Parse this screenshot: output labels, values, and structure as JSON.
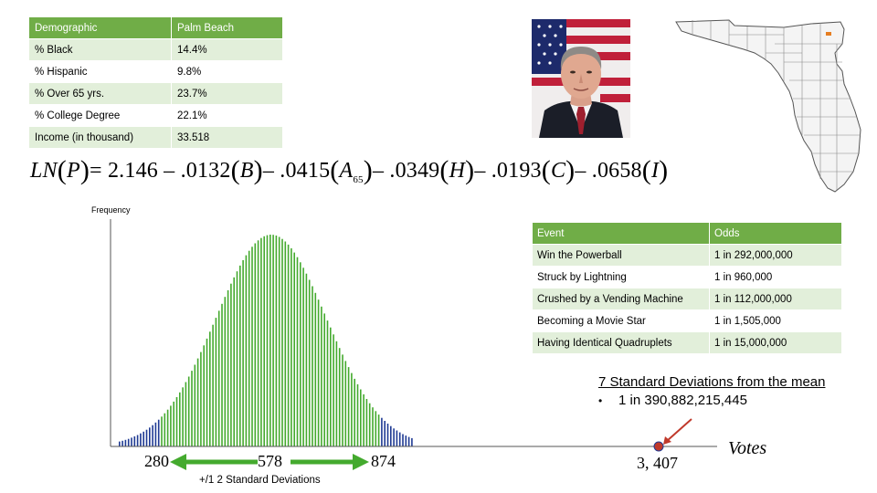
{
  "demographics": {
    "headers": [
      "Demographic",
      "Palm Beach"
    ],
    "rows": [
      [
        "% Black",
        "14.4%"
      ],
      [
        "% Hispanic",
        "9.8%"
      ],
      [
        "% Over 65 yrs.",
        "23.7%"
      ],
      [
        "% College Degree",
        "22.1%"
      ],
      [
        "Income (in thousand)",
        "33.518"
      ]
    ]
  },
  "equation": {
    "lhs": "LN",
    "lhs_var": "P",
    "const": "= 2.146 – .0132",
    "t1": "B",
    "c2": "– .0415",
    "t2": "A",
    "t2_sub": "65",
    "c3": "– .0349",
    "t3": "H",
    "c4": "– .0193",
    "t4": "C",
    "c5": "– .0658",
    "t5": "I"
  },
  "odds": {
    "headers": [
      "Event",
      "Odds"
    ],
    "rows": [
      [
        "Win the Powerball",
        "1 in 292,000,000"
      ],
      [
        "Struck by Lightning",
        "1 in 960,000"
      ],
      [
        "Crushed by a Vending Machine",
        "1 in 112,000,000"
      ],
      [
        "Becoming a Movie Star",
        "1 in 1,505,000"
      ],
      [
        "Having Identical Quadruplets",
        "1 in 15,000,000"
      ]
    ]
  },
  "std": {
    "title": "7 Standard Deviations from the mean",
    "bullet": "1 in 390,882,215,445"
  },
  "chart_data": {
    "type": "bar",
    "ylabel": "Frequency",
    "xlabel": "Votes",
    "mean": 578,
    "std_dev": 148,
    "tick_labels": [
      "280",
      "578",
      "874"
    ],
    "marked_value": 3407,
    "marked_label": "3, 407",
    "range_label": "+/1 2 Standard Deviations",
    "colors": {
      "within_2sd": "#44aa2e",
      "outside_2sd": "#1f3a93",
      "marker": "#c0392b",
      "arrow": "#44aa2e"
    }
  },
  "map": {
    "label": "Florida counties"
  }
}
